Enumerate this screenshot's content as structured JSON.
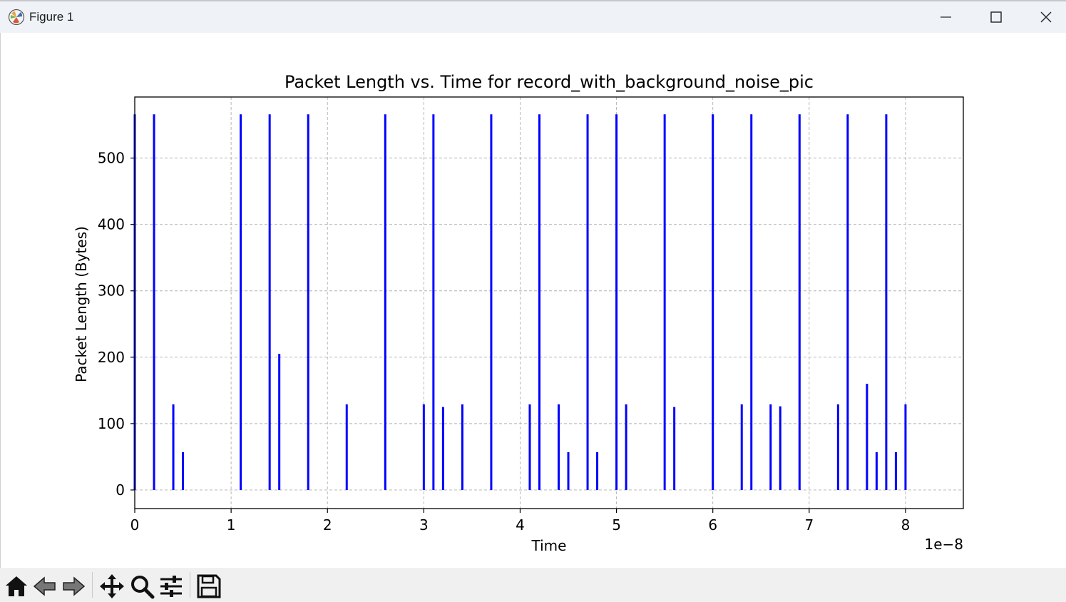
{
  "window": {
    "title": "Figure 1",
    "app_icon": "matplotlib-figure-icon"
  },
  "toolbar": {
    "buttons": [
      {
        "name": "home",
        "icon": "home-icon"
      },
      {
        "name": "back",
        "icon": "back-arrow-icon"
      },
      {
        "name": "forward",
        "icon": "forward-arrow-icon"
      },
      {
        "name": "pan",
        "icon": "pan-move-icon"
      },
      {
        "name": "zoom",
        "icon": "zoom-magnifier-icon"
      },
      {
        "name": "configure-subplots",
        "icon": "sliders-icon"
      },
      {
        "name": "save",
        "icon": "save-floppy-icon"
      }
    ]
  },
  "chart_data": {
    "type": "bar",
    "title": "Packet Length vs. Time for record_with_background_noise_pic",
    "xlabel": "Time",
    "ylabel": "Packet Length (Bytes)",
    "x_offset_label": "1e−8",
    "xlim": [
      0,
      8.6
    ],
    "ylim": [
      -28,
      592
    ],
    "x_ticks": [
      0,
      1,
      2,
      3,
      4,
      5,
      6,
      7,
      8
    ],
    "y_ticks": [
      0,
      100,
      200,
      300,
      400,
      500
    ],
    "grid": true,
    "color": "#0000ff",
    "x": [
      0.0,
      0.2,
      0.4,
      0.5,
      1.1,
      1.4,
      1.5,
      1.8,
      2.2,
      2.6,
      3.0,
      3.1,
      3.2,
      3.4,
      3.7,
      4.1,
      4.2,
      4.4,
      4.5,
      4.7,
      4.8,
      5.0,
      5.1,
      5.5,
      5.6,
      6.0,
      6.3,
      6.4,
      6.6,
      6.7,
      6.9,
      7.3,
      7.4,
      7.6,
      7.7,
      7.8,
      7.9,
      8.0
    ],
    "values": [
      566,
      566,
      129,
      57,
      566,
      566,
      205,
      566,
      129,
      566,
      129,
      566,
      125,
      129,
      566,
      129,
      566,
      129,
      57,
      566,
      57,
      566,
      129,
      566,
      125,
      566,
      129,
      566,
      129,
      126,
      566,
      129,
      566,
      160,
      57,
      566,
      57,
      129
    ]
  }
}
